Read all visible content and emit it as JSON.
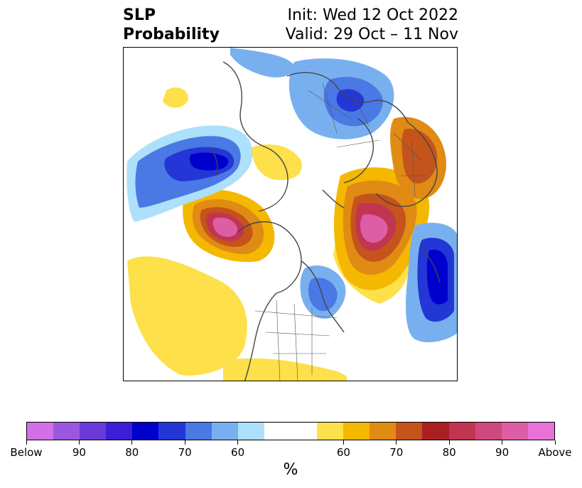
{
  "header": {
    "title_line1": "SLP",
    "title_line2": "Probability",
    "init_text": "Init: Wed 12 Oct 2022",
    "valid_text": "Valid: 29 Oct – 11 Nov"
  },
  "colorbar": {
    "unit": "%",
    "colors": [
      "#d46fe8",
      "#9b57e0",
      "#6b3ad8",
      "#3a1fd6",
      "#0000cc",
      "#2336d6",
      "#4a78e4",
      "#78b0ef",
      "#ade0fb",
      "#ffffff",
      "#ffffff",
      "#fde04a",
      "#f4b800",
      "#e08b14",
      "#c4541c",
      "#ab1f23",
      "#c13551",
      "#cf4a7c",
      "#dd5ea4",
      "#e872d8"
    ],
    "ticks": [
      {
        "label": "Below",
        "frac": 0.0
      },
      {
        "label": "90",
        "frac": 0.1
      },
      {
        "label": "80",
        "frac": 0.2
      },
      {
        "label": "70",
        "frac": 0.3
      },
      {
        "label": "60",
        "frac": 0.4
      },
      {
        "label": "60",
        "frac": 0.6
      },
      {
        "label": "70",
        "frac": 0.7
      },
      {
        "label": "80",
        "frac": 0.8
      },
      {
        "label": "90",
        "frac": 0.9
      },
      {
        "label": "Above",
        "frac": 1.0
      }
    ]
  }
}
